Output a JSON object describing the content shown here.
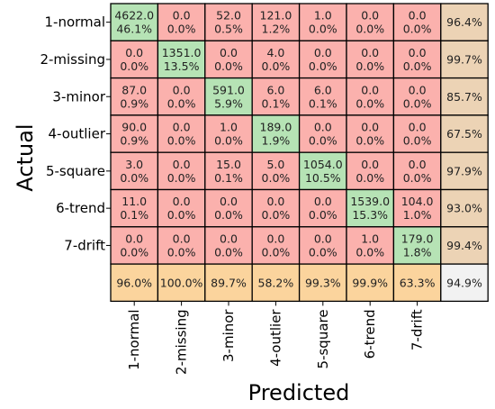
{
  "chart_data": {
    "type": "heatmap",
    "xlabel": "Predicted",
    "ylabel": "Actual",
    "classes": [
      "1-normal",
      "2-missing",
      "3-minor",
      "4-outlier",
      "5-square",
      "6-trend",
      "7-drift"
    ],
    "matrix": [
      [
        [
          "4622.0",
          "46.1%"
        ],
        [
          "0.0",
          "0.0%"
        ],
        [
          "52.0",
          "0.5%"
        ],
        [
          "121.0",
          "1.2%"
        ],
        [
          "1.0",
          "0.0%"
        ],
        [
          "0.0",
          "0.0%"
        ],
        [
          "0.0",
          "0.0%"
        ]
      ],
      [
        [
          "0.0",
          "0.0%"
        ],
        [
          "1351.0",
          "13.5%"
        ],
        [
          "0.0",
          "0.0%"
        ],
        [
          "4.0",
          "0.0%"
        ],
        [
          "0.0",
          "0.0%"
        ],
        [
          "0.0",
          "0.0%"
        ],
        [
          "0.0",
          "0.0%"
        ]
      ],
      [
        [
          "87.0",
          "0.9%"
        ],
        [
          "0.0",
          "0.0%"
        ],
        [
          "591.0",
          "5.9%"
        ],
        [
          "6.0",
          "0.1%"
        ],
        [
          "6.0",
          "0.1%"
        ],
        [
          "0.0",
          "0.0%"
        ],
        [
          "0.0",
          "0.0%"
        ]
      ],
      [
        [
          "90.0",
          "0.9%"
        ],
        [
          "0.0",
          "0.0%"
        ],
        [
          "1.0",
          "0.0%"
        ],
        [
          "189.0",
          "1.9%"
        ],
        [
          "0.0",
          "0.0%"
        ],
        [
          "0.0",
          "0.0%"
        ],
        [
          "0.0",
          "0.0%"
        ]
      ],
      [
        [
          "3.0",
          "0.0%"
        ],
        [
          "0.0",
          "0.0%"
        ],
        [
          "15.0",
          "0.1%"
        ],
        [
          "5.0",
          "0.0%"
        ],
        [
          "1054.0",
          "10.5%"
        ],
        [
          "0.0",
          "0.0%"
        ],
        [
          "0.0",
          "0.0%"
        ]
      ],
      [
        [
          "11.0",
          "0.1%"
        ],
        [
          "0.0",
          "0.0%"
        ],
        [
          "0.0",
          "0.0%"
        ],
        [
          "0.0",
          "0.0%"
        ],
        [
          "0.0",
          "0.0%"
        ],
        [
          "1539.0",
          "15.3%"
        ],
        [
          "104.0",
          "1.0%"
        ]
      ],
      [
        [
          "0.0",
          "0.0%"
        ],
        [
          "0.0",
          "0.0%"
        ],
        [
          "0.0",
          "0.0%"
        ],
        [
          "0.0",
          "0.0%"
        ],
        [
          "0.0",
          "0.0%"
        ],
        [
          "1.0",
          "0.0%"
        ],
        [
          "179.0",
          "1.8%"
        ]
      ]
    ],
    "row_totals": [
      "96.4%",
      "99.7%",
      "85.7%",
      "67.5%",
      "97.9%",
      "93.0%",
      "99.4%"
    ],
    "col_totals": [
      "96.0%",
      "100.0%",
      "89.7%",
      "58.2%",
      "99.3%",
      "99.9%",
      "63.3%"
    ],
    "overall": "94.9%",
    "colors": {
      "diagonal": "#b6e3b5",
      "off_diagonal": "#fbb1ad",
      "row_total": "#ecd3b5",
      "col_total": "#fbd49d",
      "overall": "#f2f2f2",
      "grid": "#000000"
    }
  }
}
